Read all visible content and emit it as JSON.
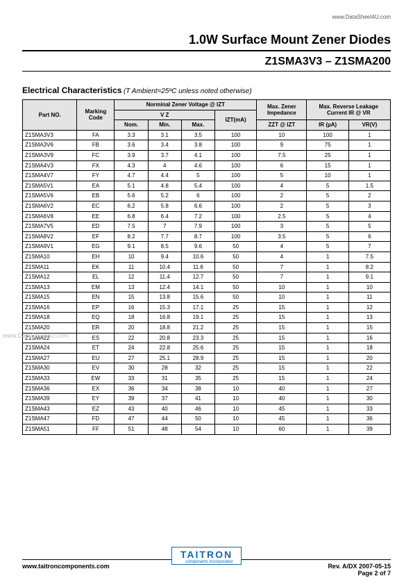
{
  "top_url": "www.DataSheet4U.com",
  "title": "1.0W Surface Mount Zener Diodes",
  "subtitle": "Z1SMA3V3 – Z1SMA200",
  "section_title": "Electrical Characteristics",
  "section_condition": "(T Ambient=25ºC unless noted otherwise)",
  "watermark": "www.DataSheet4U.com",
  "header": {
    "part_no": "Part NO.",
    "marking_code": "Marking Code",
    "nominal_group": "Norminal Zener Voltage @ IZT",
    "vz": "V Z",
    "nom": "Nom.",
    "min": "Min.",
    "max": "Max.",
    "izt": "IZT(mA)",
    "max_zener": "Max. Zener Impedance",
    "zzt": "ZZT @ IZT",
    "max_reverse": "Max. Reverse Leakage Current IR @ VR",
    "ir": "IR (µA)",
    "vr": "VR(V)"
  },
  "rows": [
    [
      "Z1SMA3V3",
      "FA",
      "3.3",
      "3.1",
      "3.5",
      "100",
      "10",
      "100",
      "1"
    ],
    [
      "Z1SMA3V6",
      "FB",
      "3.6",
      "3.4",
      "3.8",
      "100",
      "9",
      "75",
      "1"
    ],
    [
      "Z1SMA3V9",
      "FC",
      "3.9",
      "3.7",
      "4.1",
      "100",
      "7.5",
      "25",
      "1"
    ],
    [
      "Z1SMA4V3",
      "FX",
      "4.3",
      "4",
      "4.6",
      "100",
      "6",
      "15",
      "1"
    ],
    [
      "Z1SMA4V7",
      "FY",
      "4.7",
      "4.4",
      "5",
      "100",
      "5",
      "10",
      "1"
    ],
    [
      "Z1SMA5V1",
      "EA",
      "5.1",
      "4.8",
      "5.4",
      "100",
      "4",
      "5",
      "1.5"
    ],
    [
      "Z1SMA5V6",
      "EB",
      "5.6",
      "5.2",
      "6",
      "100",
      "2",
      "5",
      "2"
    ],
    [
      "Z1SMA6V2",
      "EC",
      "6.2",
      "5.8",
      "6.6",
      "100",
      "2",
      "5",
      "3"
    ],
    [
      "Z1SMA6V8",
      "EE",
      "6.8",
      "6.4",
      "7.2",
      "100",
      "2.5",
      "5",
      "4"
    ],
    [
      "Z1SMA7V5",
      "ED",
      "7.5",
      "7",
      "7.9",
      "100",
      "3",
      "5",
      "5"
    ],
    [
      "Z1SMA8V2",
      "EF",
      "8.2",
      "7.7",
      "8.7",
      "100",
      "3.5",
      "5",
      "6"
    ],
    [
      "Z1SMA9V1",
      "EG",
      "9.1",
      "8.5",
      "9.6",
      "50",
      "4",
      "5",
      "7"
    ],
    [
      "Z1SMA10",
      "EH",
      "10",
      "9.4",
      "10.6",
      "50",
      "4",
      "1",
      "7.5"
    ],
    [
      "Z1SMA11",
      "EK",
      "11",
      "10.4",
      "11.6",
      "50",
      "7",
      "1",
      "8.2"
    ],
    [
      "Z1SMA12",
      "EL",
      "12",
      "11.4",
      "12.7",
      "50",
      "7",
      "1",
      "9.1"
    ],
    [
      "Z1SMA13",
      "EM",
      "13",
      "12.4",
      "14.1",
      "50",
      "10",
      "1",
      "10"
    ],
    [
      "Z1SMA15",
      "EN",
      "15",
      "13.8",
      "15.6",
      "50",
      "10",
      "1",
      "11"
    ],
    [
      "Z1SMA16",
      "EP",
      "16",
      "15.3",
      "17.1",
      "25",
      "15",
      "1",
      "12"
    ],
    [
      "Z1SMA18",
      "EQ",
      "18",
      "16.8",
      "19.1",
      "25",
      "15",
      "1",
      "13"
    ],
    [
      "Z1SMA20",
      "ER",
      "20",
      "18.8",
      "21.2",
      "25",
      "15",
      "1",
      "15"
    ],
    [
      "Z1SMA22",
      "ES",
      "22",
      "20.8",
      "23.3",
      "25",
      "15",
      "1",
      "16"
    ],
    [
      "Z1SMA24",
      "ET",
      "24",
      "22.8",
      "25.6",
      "25",
      "15",
      "1",
      "18"
    ],
    [
      "Z1SMA27",
      "EU",
      "27",
      "25.1",
      "28.9",
      "25",
      "15",
      "1",
      "20"
    ],
    [
      "Z1SMA30",
      "EV",
      "30",
      "28",
      "32",
      "25",
      "15",
      "1",
      "22"
    ],
    [
      "Z1SMA33",
      "EW",
      "33",
      "31",
      "35",
      "25",
      "15",
      "1",
      "24"
    ],
    [
      "Z1SMA36",
      "EX",
      "36",
      "34",
      "38",
      "10",
      "40",
      "1",
      "27"
    ],
    [
      "Z1SMA39",
      "EY",
      "39",
      "37",
      "41",
      "10",
      "40",
      "1",
      "30"
    ],
    [
      "Z1SMA43",
      "EZ",
      "43",
      "40",
      "46",
      "10",
      "45",
      "1",
      "33"
    ],
    [
      "Z1SMA47",
      "FD",
      "47",
      "44",
      "50",
      "10",
      "45",
      "1",
      "36"
    ],
    [
      "Z1SMA51",
      "FF",
      "51",
      "48",
      "54",
      "10",
      "60",
      "1",
      "39"
    ]
  ],
  "footer": {
    "company_name": "TAITRON",
    "company_sub": "components incorporated",
    "rev": "Rev. A/DX 2007-05-15",
    "site": "www.taitroncomponents.com",
    "page": "Page 2 of 7"
  }
}
